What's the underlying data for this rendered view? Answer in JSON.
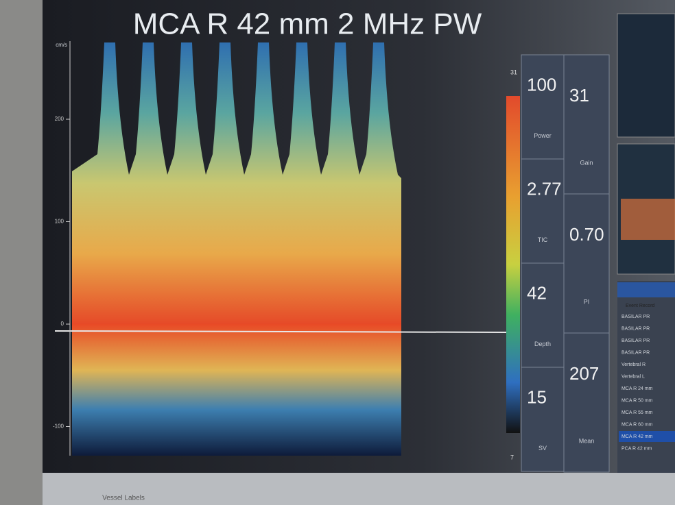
{
  "header": {
    "title": "MCA R 42 mm 2 MHz PW"
  },
  "spectrum": {
    "unit": "cm/s",
    "yticks": [
      200,
      100,
      0,
      -100
    ]
  },
  "color_bar": {
    "top": "31",
    "bottom": "7"
  },
  "params_left": [
    {
      "value": "100",
      "label": "Power"
    },
    {
      "value": "2.77",
      "label": "TIC"
    },
    {
      "value": "42",
      "label": "Depth"
    },
    {
      "value": "15",
      "label": "SV"
    }
  ],
  "params_right": [
    {
      "value": "31",
      "label": "Gain"
    },
    {
      "value": "0.70",
      "label": "PI"
    },
    {
      "value": "207",
      "label": "Mean"
    }
  ],
  "event_list": {
    "header": "Event Record",
    "items": [
      "BASILAR PR",
      "BASILAR PR",
      "BASILAR PR",
      "BASILAR PR",
      "Vertebral R",
      "Vertebral L",
      "MCA R 24 mm",
      "MCA R 50 mm",
      "MCA R 55 mm",
      "MCA R 60 mm",
      "MCA R 42 mm",
      "PCA R 42 mm"
    ],
    "selected": 10
  },
  "bottom_bar": {
    "tabs": [
      "Vessel Labels"
    ]
  }
}
